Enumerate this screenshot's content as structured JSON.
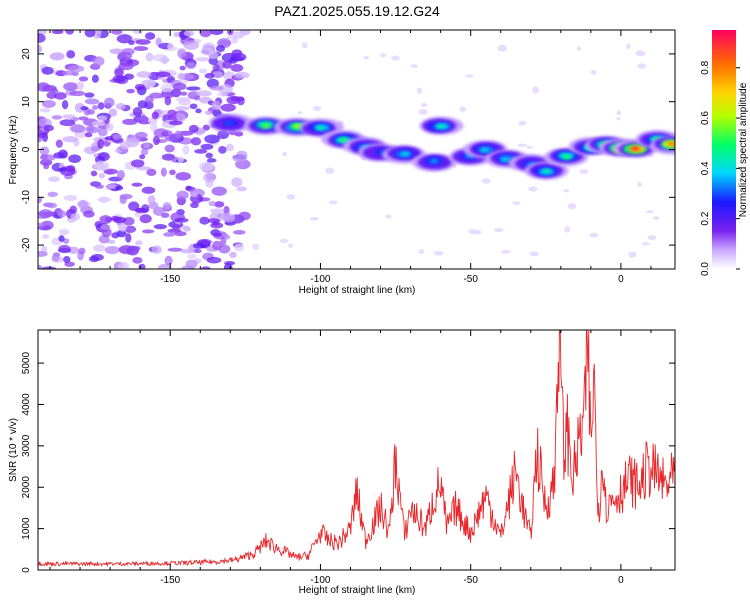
{
  "title": "PAZ1.2025.055.19.12.G24",
  "colors": {
    "snr_line": "#e8262a",
    "frame": "#000000"
  },
  "chart_data": [
    {
      "type": "heatmap",
      "xlabel": "Height of straight line (km)",
      "ylabel": "Frequency (Hz)",
      "xlim": [
        -194,
        18
      ],
      "ylim": [
        -25,
        25
      ],
      "xticks": [
        -150,
        -100,
        -50,
        0
      ],
      "xtick_labels": [
        "-150",
        "-100",
        "-50",
        "0"
      ],
      "yticks": [
        20,
        10,
        0,
        -10,
        -20
      ],
      "ytick_labels": [
        "20",
        "10",
        "0",
        "-10",
        "-20"
      ],
      "colorbar": {
        "label": "Normalized spectral amplitude",
        "range": [
          0,
          0.95
        ],
        "ticks": [
          0.0,
          0.2,
          0.4,
          0.6,
          0.8
        ],
        "tick_labels": [
          "0.0",
          "0.2",
          "0.4",
          "0.6",
          "0.8"
        ]
      },
      "noise_region": {
        "x_range": [
          -194,
          -125
        ],
        "y_range": [
          -25,
          25
        ],
        "level": 0.1
      },
      "ridge": [
        {
          "x": -130,
          "y": 5.5,
          "v": 0.3
        },
        {
          "x": -118,
          "y": 5.0,
          "v": 0.55
        },
        {
          "x": -108,
          "y": 4.8,
          "v": 0.6
        },
        {
          "x": -100,
          "y": 4.5,
          "v": 0.45
        },
        {
          "x": -92,
          "y": 2.0,
          "v": 0.5
        },
        {
          "x": -85,
          "y": 0.5,
          "v": 0.4
        },
        {
          "x": -80,
          "y": -0.5,
          "v": 0.3
        },
        {
          "x": -72,
          "y": -1.0,
          "v": 0.4
        },
        {
          "x": -62,
          "y": -2.5,
          "v": 0.35
        },
        {
          "x": -60,
          "y": 5.0,
          "v": 0.45
        },
        {
          "x": -50,
          "y": -1.5,
          "v": 0.35
        },
        {
          "x": -45,
          "y": 0.0,
          "v": 0.4
        },
        {
          "x": -38,
          "y": -2.0,
          "v": 0.4
        },
        {
          "x": -30,
          "y": -3.0,
          "v": 0.35
        },
        {
          "x": -25,
          "y": -4.5,
          "v": 0.45
        },
        {
          "x": -18,
          "y": -1.5,
          "v": 0.5
        },
        {
          "x": -10,
          "y": 0.5,
          "v": 0.5
        },
        {
          "x": -5,
          "y": 1.0,
          "v": 0.55
        },
        {
          "x": 0,
          "y": 0.2,
          "v": 0.85
        },
        {
          "x": 5,
          "y": 0.2,
          "v": 0.9
        },
        {
          "x": 12,
          "y": 2.0,
          "v": 0.5
        },
        {
          "x": 17,
          "y": 1.0,
          "v": 0.8
        }
      ]
    },
    {
      "type": "line",
      "xlabel": "Height of straight line (km)",
      "ylabel": "SNR (10 * v/v)",
      "xlim": [
        -194,
        18
      ],
      "ylim": [
        0,
        5800
      ],
      "xticks": [
        -150,
        -100,
        -50,
        0
      ],
      "xtick_labels": [
        "-150",
        "-100",
        "-50",
        "0"
      ],
      "yticks": [
        0,
        1000,
        2000,
        3000,
        4000,
        5000
      ],
      "ytick_labels": [
        "0",
        "1000",
        "2000",
        "3000",
        "4000",
        "5000"
      ],
      "series": [
        {
          "x": [
            -194,
            -185,
            -175,
            -165,
            -155,
            -145,
            -135,
            -128,
            -122,
            -118,
            -115,
            -112,
            -108,
            -104,
            -100,
            -97,
            -94,
            -90,
            -88,
            -85,
            -80,
            -77,
            -75,
            -72,
            -70,
            -65,
            -62,
            -60,
            -58,
            -55,
            -50,
            -45,
            -40,
            -35,
            -32,
            -30,
            -28,
            -25,
            -22,
            -21,
            -20,
            -19,
            -18,
            -16,
            -14,
            -12,
            -11,
            -10,
            -9,
            -8,
            -7,
            -6,
            -5,
            -3,
            0,
            3,
            6,
            9,
            12,
            15,
            18
          ],
          "y": [
            150,
            150,
            150,
            150,
            160,
            170,
            200,
            250,
            400,
            700,
            550,
            450,
            300,
            350,
            900,
            700,
            650,
            1000,
            1900,
            700,
            1500,
            900,
            2700,
            800,
            1500,
            1000,
            1800,
            2100,
            1000,
            1500,
            900,
            1800,
            800,
            2400,
            1300,
            800,
            2900,
            1500,
            2200,
            5700,
            4800,
            2700,
            3500,
            2200,
            3000,
            3800,
            5400,
            2800,
            5000,
            2000,
            1500,
            3000,
            1500,
            1700,
            1900,
            2200,
            2000,
            2500,
            2300,
            2000,
            2300
          ]
        }
      ]
    }
  ]
}
